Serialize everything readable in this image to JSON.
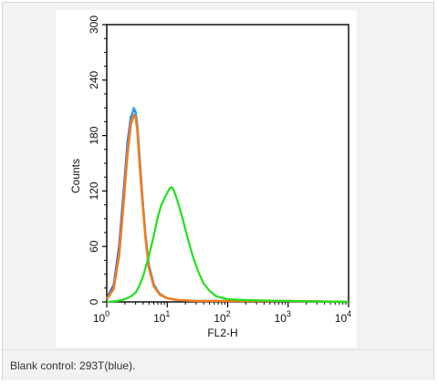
{
  "caption": "Blank control: 293T(blue).",
  "chart_data": {
    "type": "line",
    "title": "",
    "xlabel": "FL2-H",
    "ylabel": "Counts",
    "x_scale": "log",
    "xlim": [
      1,
      10000
    ],
    "ylim": [
      0,
      300
    ],
    "x_ticks": [
      {
        "value": 1,
        "base": "10",
        "exp": "0"
      },
      {
        "value": 10,
        "base": "10",
        "exp": "1"
      },
      {
        "value": 100,
        "base": "10",
        "exp": "2"
      },
      {
        "value": 1000,
        "base": "10",
        "exp": "3"
      },
      {
        "value": 10000,
        "base": "10",
        "exp": "4"
      }
    ],
    "y_ticks": [
      "0",
      "60",
      "120",
      "180",
      "240",
      "300"
    ],
    "grid": false,
    "series": [
      {
        "color": "#1f2bd6",
        "x": [
          1,
          1.3,
          1.6,
          1.9,
          2.2,
          2.5,
          2.8,
          3.0,
          3.2,
          3.5,
          3.9,
          4.4,
          5.0,
          6.0,
          7.5,
          10,
          15,
          30,
          100,
          1000,
          10000
        ],
        "y": [
          4,
          18,
          60,
          120,
          172,
          200,
          208,
          205,
          190,
          155,
          110,
          70,
          38,
          18,
          8,
          4,
          2,
          1,
          1,
          1,
          0
        ]
      },
      {
        "color": "#2fa4e7",
        "x": [
          1,
          1.3,
          1.6,
          1.9,
          2.2,
          2.5,
          2.8,
          3.0,
          3.2,
          3.5,
          3.9,
          4.4,
          5.0,
          6.0,
          7.5,
          10,
          15,
          30,
          100,
          1000,
          10000
        ],
        "y": [
          3,
          16,
          56,
          115,
          168,
          198,
          210,
          206,
          192,
          158,
          113,
          72,
          40,
          19,
          9,
          4,
          2,
          1,
          1,
          1,
          0
        ]
      },
      {
        "color": "#f07c1e",
        "x": [
          1,
          1.3,
          1.6,
          1.9,
          2.2,
          2.5,
          2.8,
          3.0,
          3.2,
          3.5,
          3.9,
          4.4,
          5.0,
          6.0,
          7.5,
          10,
          15,
          30,
          100,
          1000,
          10000
        ],
        "y": [
          3,
          14,
          50,
          108,
          160,
          192,
          202,
          200,
          186,
          150,
          108,
          68,
          36,
          17,
          8,
          4,
          2,
          1,
          1,
          1,
          0
        ]
      },
      {
        "color": "#22e01e",
        "x": [
          1,
          1.5,
          2,
          2.5,
          3,
          3.5,
          4,
          5,
          6,
          7,
          8,
          9,
          10,
          11,
          12,
          13,
          15,
          18,
          22,
          27,
          33,
          40,
          50,
          65,
          100,
          200,
          1000,
          10000
        ],
        "y": [
          0,
          1,
          3,
          6,
          10,
          18,
          28,
          50,
          72,
          92,
          105,
          112,
          118,
          123,
          124,
          120,
          108,
          90,
          68,
          48,
          32,
          20,
          12,
          6,
          3,
          2,
          1,
          0
        ]
      }
    ]
  }
}
